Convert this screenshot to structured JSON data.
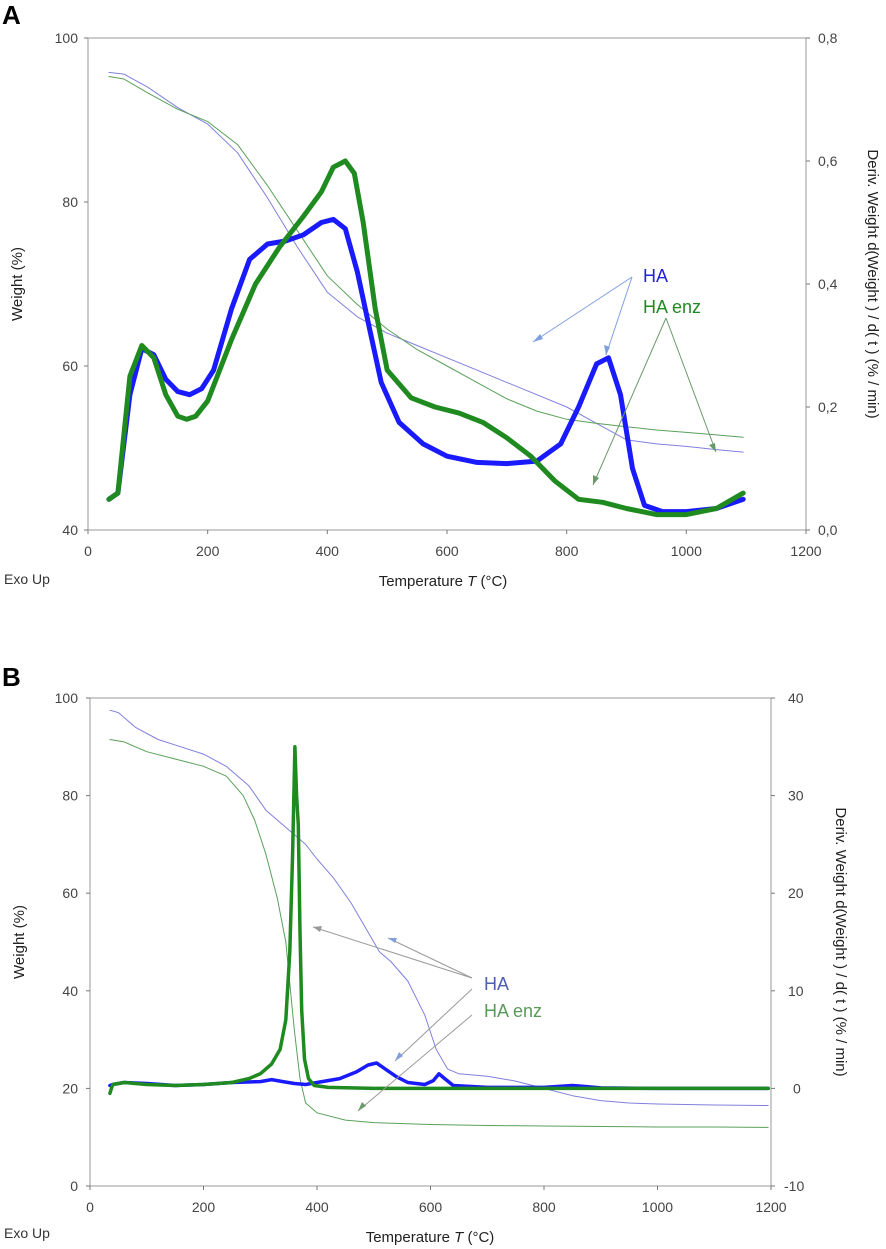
{
  "colors": {
    "ha_weight": "#8080dd",
    "ha_deriv": "#1a1aff",
    "haenz_weight": "#5aa05a",
    "haenz_deriv": "#1f8a1f",
    "ha_label": "#2222dd",
    "haenz_label": "#1f8a1f",
    "ha_label_b": "#4a5fb0",
    "haenz_label_b": "#5a9a5a",
    "arrow_blue": "#7f9fdf",
    "arrow_green": "#6a9a6a",
    "arrow_gray": "#9a9a9a"
  },
  "chart_data": [
    {
      "panel": "A",
      "type": "line",
      "x_label_prefix": "Temperature",
      "x_label_var": "T",
      "x_label_unit": "(°C)",
      "y_label": "Weight  (%)",
      "y2_label": "Deriv. Weight d(Weight ) / d( t )  (% / min)",
      "exo_label": "Exo Up",
      "xlim": [
        0,
        1200
      ],
      "ylim": [
        40,
        100
      ],
      "y2lim": [
        0.0,
        0.8
      ],
      "x_ticks": [
        "0",
        "200",
        "400",
        "600",
        "800",
        "1000",
        "1200"
      ],
      "y_ticks": [
        "40",
        "60",
        "80",
        "100"
      ],
      "y2_ticks": [
        "0,0",
        "0,2",
        "0,4",
        "0,6",
        "0,8"
      ],
      "annotations": [
        {
          "text": "HA"
        },
        {
          "text": "HA enz"
        }
      ],
      "series": [
        {
          "name": "HA weight",
          "axis": "left",
          "style": "thin",
          "x": [
            35,
            60,
            100,
            150,
            200,
            250,
            300,
            350,
            400,
            450,
            500,
            550,
            600,
            650,
            700,
            750,
            800,
            850,
            900,
            950,
            1000,
            1050,
            1095
          ],
          "y": [
            95.8,
            95.6,
            94.0,
            91.5,
            89.5,
            86.0,
            80.5,
            74.5,
            69.0,
            66.0,
            64.0,
            62.5,
            61.0,
            59.5,
            58.0,
            56.5,
            55.0,
            53.0,
            51.0,
            50.5,
            50.2,
            49.8,
            49.5
          ]
        },
        {
          "name": "HA enz weight",
          "axis": "left",
          "style": "thin",
          "x": [
            35,
            60,
            100,
            150,
            200,
            250,
            300,
            350,
            400,
            450,
            500,
            550,
            600,
            650,
            700,
            750,
            800,
            850,
            900,
            950,
            1000,
            1050,
            1095
          ],
          "y": [
            95.3,
            95.0,
            93.3,
            91.3,
            89.8,
            87.0,
            82.0,
            76.5,
            71.0,
            67.5,
            64.5,
            62.0,
            60.0,
            58.0,
            56.0,
            54.5,
            53.5,
            53.0,
            52.6,
            52.2,
            51.9,
            51.6,
            51.3
          ]
        },
        {
          "name": "HA deriv",
          "axis": "right",
          "style": "thick",
          "x": [
            35,
            50,
            70,
            90,
            110,
            130,
            150,
            170,
            190,
            210,
            240,
            270,
            300,
            330,
            360,
            390,
            410,
            430,
            450,
            470,
            490,
            520,
            560,
            600,
            650,
            700,
            750,
            790,
            820,
            850,
            870,
            890,
            910,
            930,
            960,
            1000,
            1050,
            1095
          ],
          "y": [
            0.05,
            0.06,
            0.22,
            0.295,
            0.285,
            0.245,
            0.225,
            0.22,
            0.23,
            0.26,
            0.36,
            0.44,
            0.465,
            0.47,
            0.48,
            0.5,
            0.505,
            0.49,
            0.42,
            0.33,
            0.24,
            0.175,
            0.14,
            0.12,
            0.11,
            0.108,
            0.112,
            0.14,
            0.2,
            0.27,
            0.28,
            0.22,
            0.1,
            0.04,
            0.03,
            0.03,
            0.035,
            0.05
          ]
        },
        {
          "name": "HA enz deriv",
          "axis": "right",
          "style": "thick",
          "x": [
            35,
            50,
            70,
            90,
            110,
            130,
            150,
            165,
            180,
            200,
            240,
            280,
            320,
            360,
            390,
            410,
            430,
            445,
            460,
            480,
            500,
            540,
            580,
            620,
            660,
            700,
            740,
            780,
            820,
            860,
            900,
            950,
            1000,
            1050,
            1095
          ],
          "y": [
            0.05,
            0.06,
            0.25,
            0.3,
            0.28,
            0.22,
            0.185,
            0.18,
            0.185,
            0.21,
            0.31,
            0.4,
            0.46,
            0.51,
            0.55,
            0.59,
            0.6,
            0.58,
            0.5,
            0.36,
            0.26,
            0.215,
            0.2,
            0.19,
            0.175,
            0.15,
            0.12,
            0.08,
            0.05,
            0.045,
            0.035,
            0.025,
            0.025,
            0.035,
            0.06
          ]
        }
      ]
    },
    {
      "panel": "B",
      "type": "line",
      "x_label_prefix": "Temperature",
      "x_label_var": "T",
      "x_label_unit": "(°C)",
      "y_label": "Weight  (%)",
      "y2_label": "Deriv. Weight d(Weight ) / d( t )  (% / min)",
      "exo_label": "Exo Up",
      "xlim": [
        0,
        1200
      ],
      "ylim": [
        0,
        100
      ],
      "y2lim": [
        -10,
        40
      ],
      "x_ticks": [
        "0",
        "200",
        "400",
        "600",
        "800",
        "1000",
        "1200"
      ],
      "y_ticks": [
        "0",
        "20",
        "40",
        "60",
        "80",
        "100"
      ],
      "y2_ticks": [
        "-10",
        "0",
        "10",
        "20",
        "30",
        "40"
      ],
      "annotations": [
        {
          "text": "HA"
        },
        {
          "text": "HA enz"
        }
      ],
      "series": [
        {
          "name": "HA weight",
          "axis": "left",
          "style": "thin",
          "x": [
            35,
            50,
            80,
            120,
            160,
            200,
            240,
            280,
            310,
            340,
            360,
            380,
            400,
            430,
            460,
            490,
            510,
            530,
            560,
            590,
            610,
            630,
            650,
            700,
            750,
            800,
            850,
            900,
            950,
            1000,
            1100,
            1195
          ],
          "y": [
            97.5,
            97.0,
            94.0,
            91.5,
            90.0,
            88.5,
            86.0,
            82.0,
            77.0,
            74.0,
            72.0,
            70.0,
            67.0,
            63.0,
            58.0,
            52.0,
            48.0,
            46.0,
            42.0,
            35.0,
            28.0,
            24.0,
            23.0,
            22.5,
            21.5,
            20.0,
            18.5,
            17.5,
            17.0,
            16.8,
            16.6,
            16.5
          ]
        },
        {
          "name": "HA enz weight",
          "axis": "left",
          "style": "thin",
          "x": [
            35,
            60,
            100,
            150,
            200,
            240,
            270,
            290,
            310,
            330,
            345,
            360,
            370,
            380,
            400,
            450,
            500,
            600,
            700,
            800,
            900,
            1000,
            1100,
            1195
          ],
          "y": [
            91.5,
            91.0,
            89.0,
            87.5,
            86.0,
            84.0,
            80.0,
            75.0,
            68.0,
            59.0,
            50.0,
            32.0,
            22.0,
            17.0,
            15.0,
            13.5,
            13.0,
            12.6,
            12.4,
            12.3,
            12.2,
            12.1,
            12.1,
            12.0
          ]
        },
        {
          "name": "HA deriv",
          "axis": "right",
          "style": "thick",
          "x": [
            35,
            40,
            60,
            100,
            150,
            200,
            250,
            300,
            320,
            340,
            360,
            380,
            400,
            440,
            470,
            490,
            505,
            520,
            540,
            560,
            590,
            605,
            615,
            625,
            640,
            700,
            800,
            850,
            870,
            900,
            1000,
            1195
          ],
          "y": [
            0.3,
            0.4,
            0.6,
            0.5,
            0.3,
            0.4,
            0.6,
            0.7,
            0.9,
            0.7,
            0.5,
            0.4,
            0.6,
            1.0,
            1.7,
            2.4,
            2.6,
            2.0,
            1.2,
            0.6,
            0.4,
            0.8,
            1.5,
            1.0,
            0.3,
            0.1,
            0.1,
            0.3,
            0.2,
            0.05,
            0.0,
            0.0
          ]
        },
        {
          "name": "HA enz deriv",
          "axis": "right",
          "style": "thick",
          "x": [
            35,
            40,
            60,
            100,
            150,
            200,
            250,
            280,
            300,
            320,
            335,
            345,
            352,
            357,
            361,
            364,
            367,
            370,
            373,
            378,
            385,
            395,
            420,
            500,
            600,
            800,
            1000,
            1195
          ],
          "y": [
            -0.5,
            0.4,
            0.6,
            0.4,
            0.3,
            0.4,
            0.6,
            1.0,
            1.5,
            2.5,
            4.0,
            7.0,
            14.0,
            24.0,
            35.0,
            30.0,
            27.0,
            16.0,
            8.0,
            3.0,
            1.0,
            0.3,
            0.1,
            0.0,
            0.0,
            0.0,
            0.0,
            0.0
          ]
        }
      ]
    }
  ]
}
